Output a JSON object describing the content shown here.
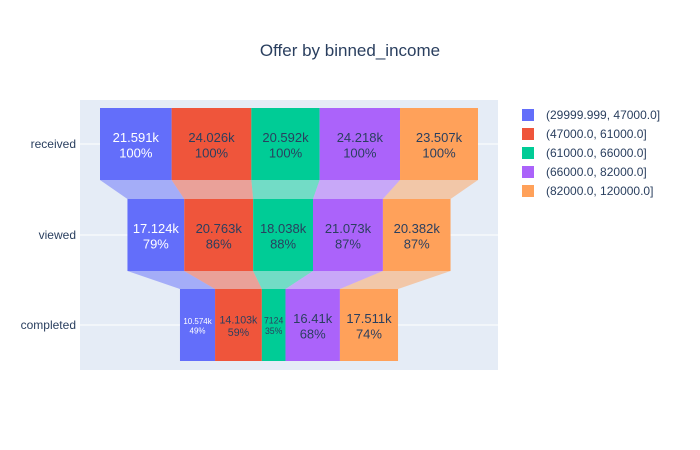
{
  "chart_data": {
    "type": "funnel",
    "title": "Offer by binned_income",
    "stages": [
      "received",
      "viewed",
      "completed"
    ],
    "series": [
      {
        "name": "(29999.999, 47000.0]",
        "color": "#636efa",
        "values": [
          21591,
          17124,
          10574
        ],
        "labels": [
          "21.591k",
          "17.124k",
          "10.574k"
        ],
        "percents": [
          "100%",
          "79%",
          "49%"
        ],
        "label_color": "#ffffff"
      },
      {
        "name": "(47000.0, 61000.0]",
        "color": "#ef553b",
        "values": [
          24026,
          20763,
          14103
        ],
        "labels": [
          "24.026k",
          "20.763k",
          "14.103k"
        ],
        "percents": [
          "100%",
          "86%",
          "59%"
        ],
        "label_color": "#2a3f5f"
      },
      {
        "name": "(61000.0, 66000.0]",
        "color": "#00cc96",
        "values": [
          20592,
          18038,
          7124
        ],
        "labels": [
          "20.592k",
          "18.038k",
          "7124"
        ],
        "percents": [
          "100%",
          "88%",
          "35%"
        ],
        "label_color": "#2a3f5f"
      },
      {
        "name": "(66000.0, 82000.0]",
        "color": "#ab63fa",
        "values": [
          24218,
          21073,
          16410
        ],
        "labels": [
          "24.218k",
          "21.073k",
          "16.41k"
        ],
        "percents": [
          "100%",
          "87%",
          "68%"
        ],
        "label_color": "#2a3f5f"
      },
      {
        "name": "(82000.0, 120000.0]",
        "color": "#ffa15a",
        "values": [
          23507,
          20382,
          17511
        ],
        "labels": [
          "23.507k",
          "20.382k",
          "17.511k"
        ],
        "percents": [
          "100%",
          "87%",
          "74%"
        ],
        "label_color": "#2a3f5f"
      }
    ],
    "legend_position": "right",
    "plot_background": "#e5ecf6",
    "grid": true
  }
}
